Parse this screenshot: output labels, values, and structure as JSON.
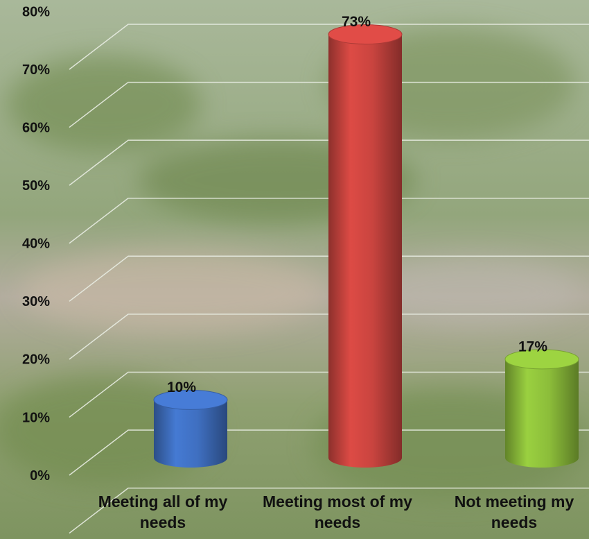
{
  "chart_data": {
    "type": "bar",
    "categories": [
      "Meeting all of my needs",
      "Meeting most of my needs",
      "Not meeting my needs"
    ],
    "values": [
      10,
      73,
      17
    ],
    "value_labels": [
      "10%",
      "73%",
      "17%"
    ],
    "colors": [
      "#3f6fc0",
      "#c9443f",
      "#8cbd3a"
    ],
    "ylim": [
      0,
      80
    ],
    "yticks": [
      {
        "value": 0,
        "label": "0%"
      },
      {
        "value": 10,
        "label": "10%"
      },
      {
        "value": 20,
        "label": "20%"
      },
      {
        "value": 30,
        "label": "30%"
      },
      {
        "value": 40,
        "label": "40%"
      },
      {
        "value": 50,
        "label": "50%"
      },
      {
        "value": 60,
        "label": "60%"
      },
      {
        "value": 70,
        "label": "70%"
      },
      {
        "value": 80,
        "label": "80%"
      }
    ],
    "grid": true
  }
}
